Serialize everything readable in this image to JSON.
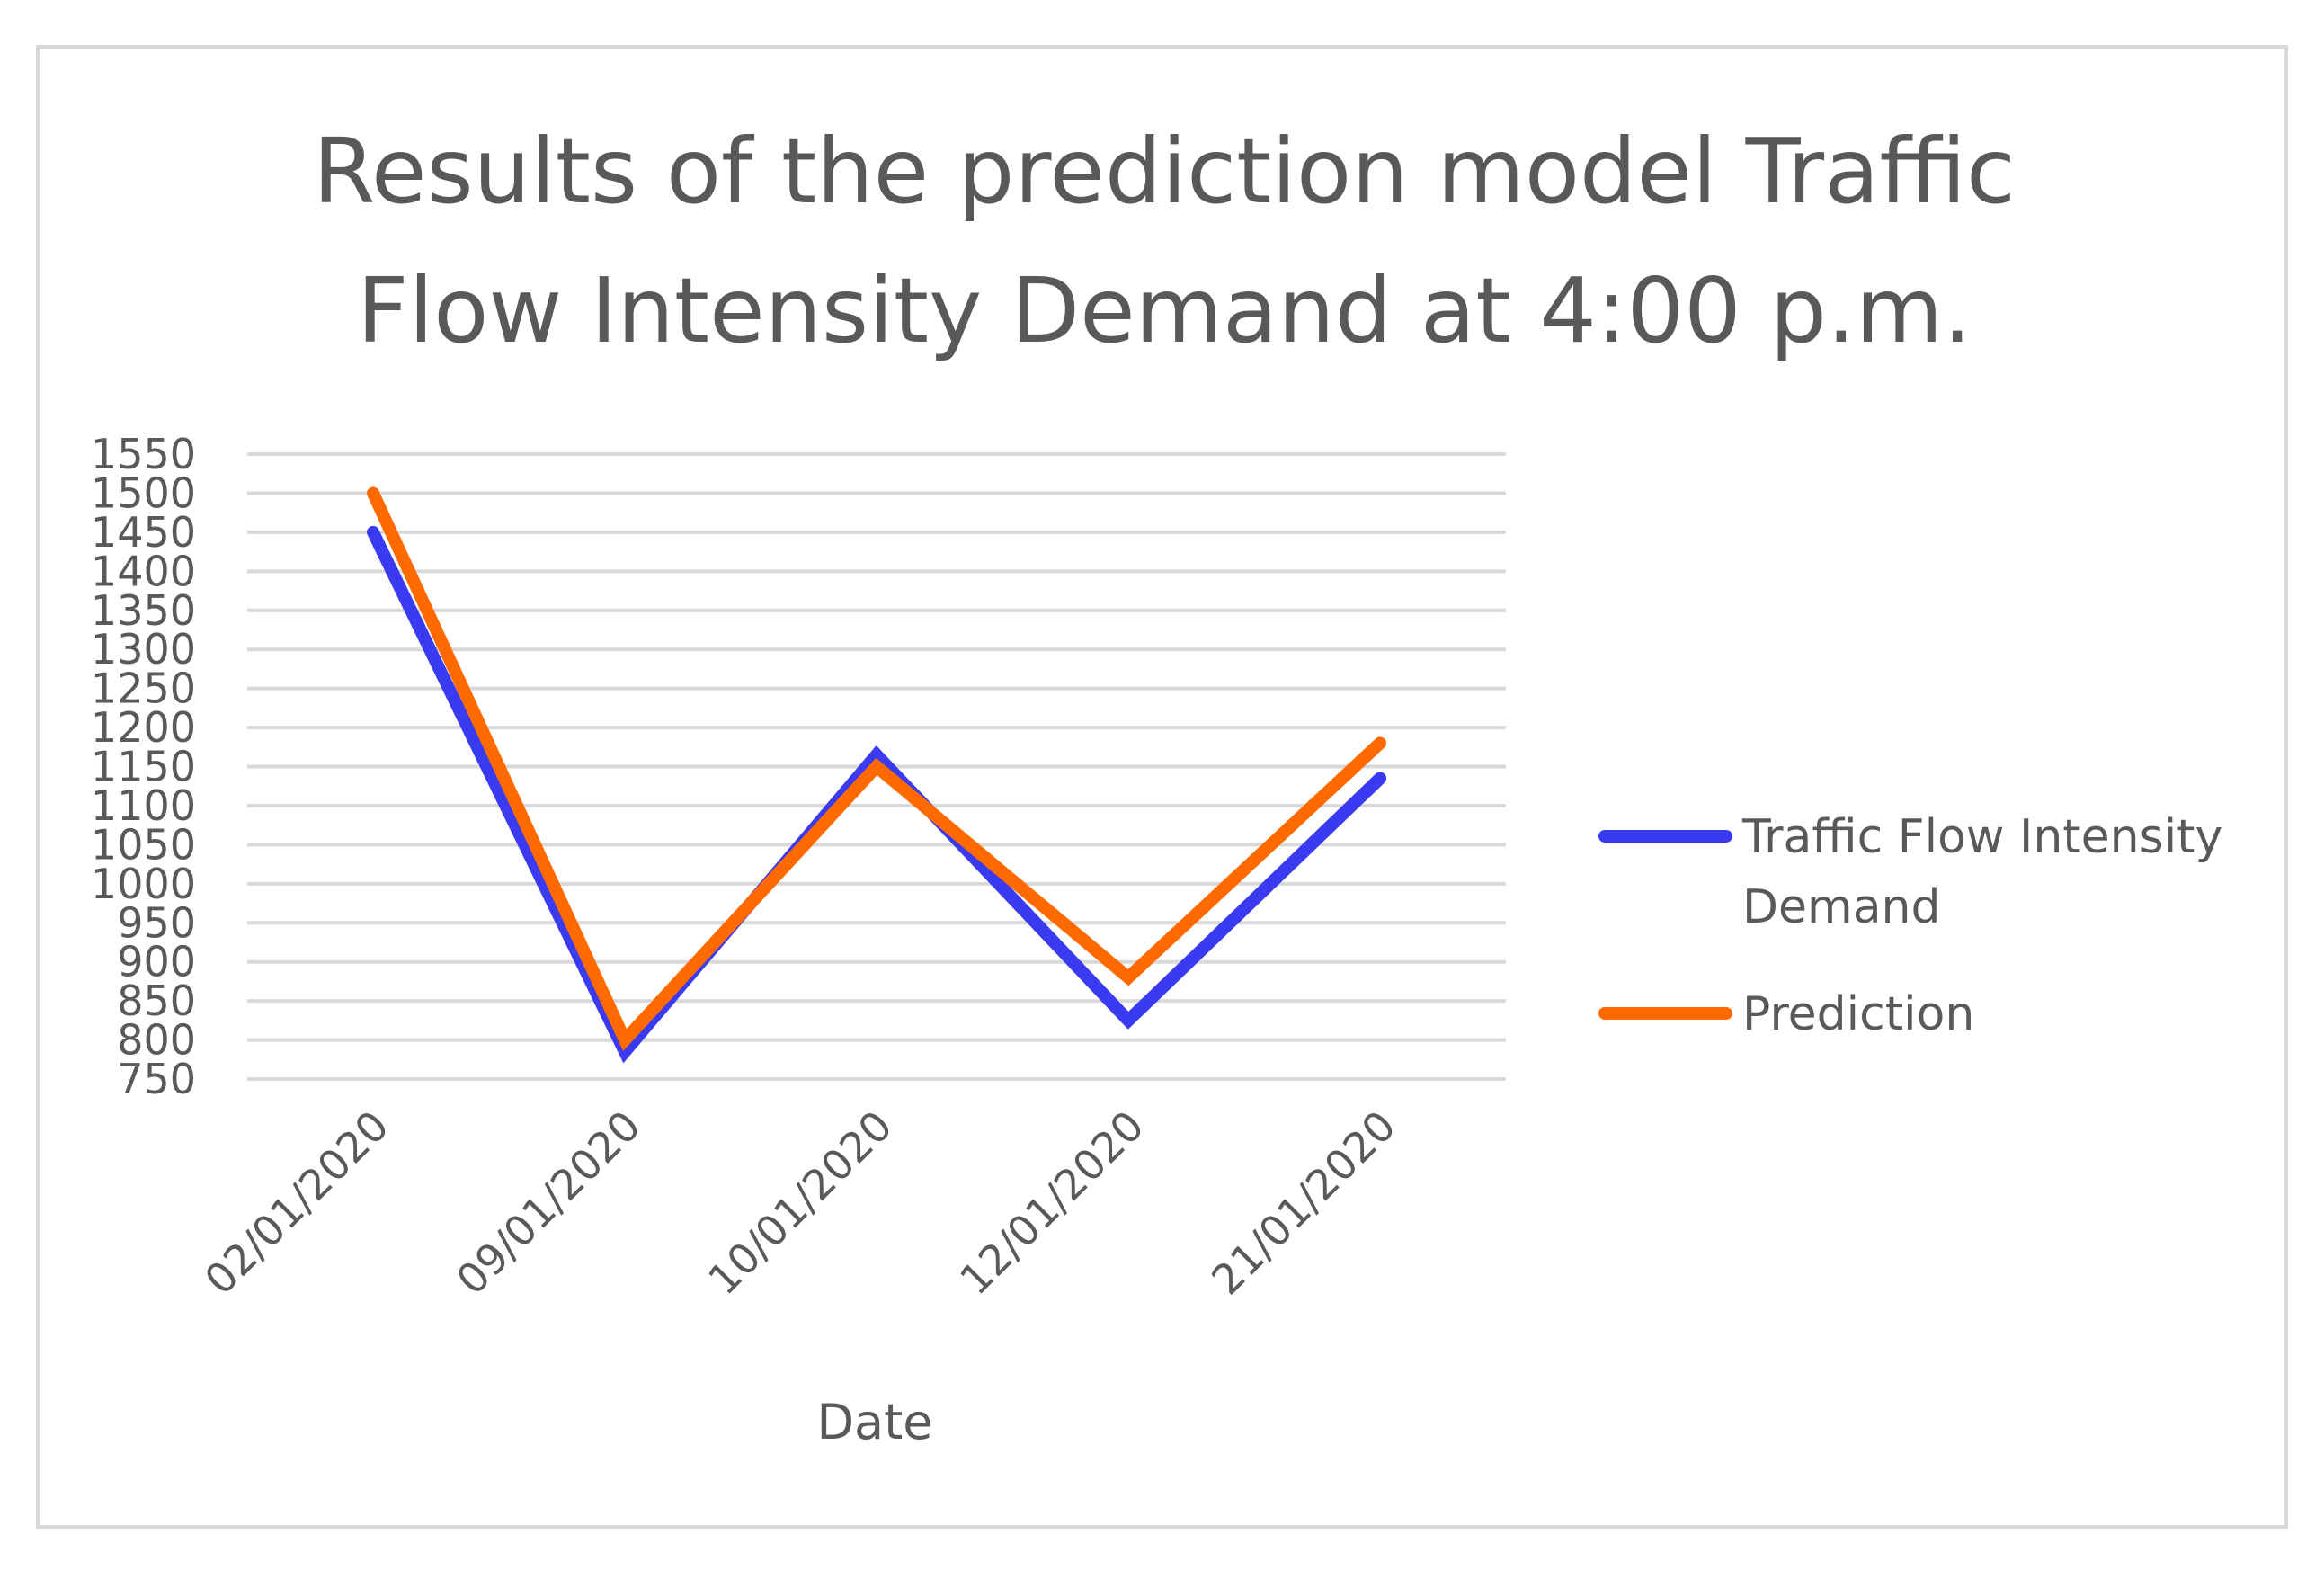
{
  "chart_data": {
    "type": "line",
    "title_lines": [
      "Results of the prediction model Traffic",
      "Flow Intensity  Demand at 4:00 p.m."
    ],
    "xlabel": "Date",
    "ylabel": "",
    "categories": [
      "02/01/2020",
      "09/01/2020",
      "10/01/2020",
      "12/01/2020",
      "21/01/2020"
    ],
    "ylim": [
      750,
      1550
    ],
    "yticks": [
      750,
      800,
      850,
      900,
      950,
      1000,
      1050,
      1100,
      1150,
      1200,
      1250,
      1300,
      1350,
      1400,
      1450,
      1500,
      1550
    ],
    "series": [
      {
        "name": "Traffic Flow Intensity Demand",
        "legend_lines": [
          "Traffic Flow Intensity",
          "Demand"
        ],
        "color": "#3a3af0",
        "values": [
          1450,
          785,
          1165,
          825,
          1135
        ]
      },
      {
        "name": "Prediction",
        "legend_lines": [
          "Prediction"
        ],
        "color": "#ff6a00",
        "values": [
          1500,
          800,
          1150,
          880,
          1180
        ]
      }
    ],
    "grid": true,
    "legend_position": "right"
  }
}
